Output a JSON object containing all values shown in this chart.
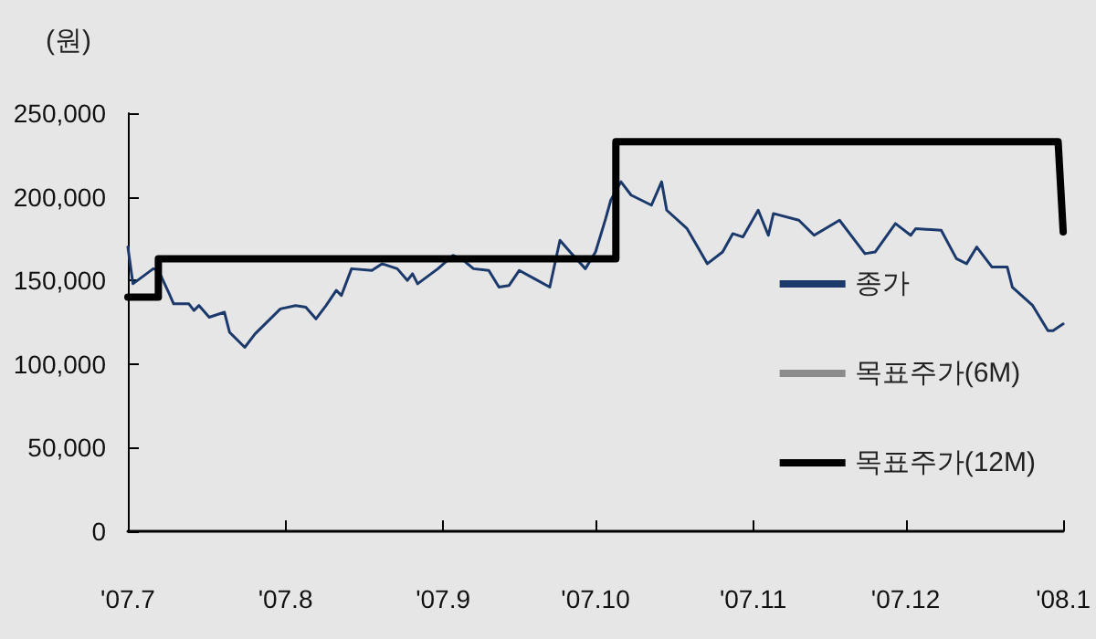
{
  "chart_data": {
    "type": "line",
    "ylabel": "(원)",
    "xlim": [
      "2007-07-01",
      "2008-01-01"
    ],
    "xticks": [
      {
        "value": "2007-07-01",
        "label": "'07.7"
      },
      {
        "value": "2007-08-01",
        "label": "'07.8"
      },
      {
        "value": "2007-09-01",
        "label": "'07.9"
      },
      {
        "value": "2007-10-01",
        "label": "'07.10"
      },
      {
        "value": "2007-11-01",
        "label": "'07.11"
      },
      {
        "value": "2007-12-01",
        "label": "'07.12"
      },
      {
        "value": "2008-01-01",
        "label": "'08.1"
      }
    ],
    "ylim": [
      0,
      250000
    ],
    "yticks": [
      {
        "value": 0,
        "label": "0"
      },
      {
        "value": 50000,
        "label": "50,000"
      },
      {
        "value": 100000,
        "label": "100,000"
      },
      {
        "value": 150000,
        "label": "150,000"
      },
      {
        "value": 200000,
        "label": "200,000"
      },
      {
        "value": 250000,
        "label": "250,000"
      }
    ],
    "grid": false,
    "legend": "right",
    "marker": "none",
    "line_style": "solid",
    "series": [
      {
        "name": "종가",
        "color": "#1b3a6b",
        "x": [
          "2007-07-01",
          "2007-07-02",
          "2007-07-06",
          "2007-07-07",
          "2007-07-09",
          "2007-07-10",
          "2007-07-13",
          "2007-07-14",
          "2007-07-15",
          "2007-07-17",
          "2007-07-20",
          "2007-07-21",
          "2007-07-24",
          "2007-07-26",
          "2007-07-29",
          "2007-07-31",
          "2007-08-03",
          "2007-08-05",
          "2007-08-07",
          "2007-08-09",
          "2007-08-11",
          "2007-08-12",
          "2007-08-14",
          "2007-08-18",
          "2007-08-20",
          "2007-08-23",
          "2007-08-25",
          "2007-08-26",
          "2007-08-27",
          "2007-08-31",
          "2007-09-03",
          "2007-09-05",
          "2007-09-07",
          "2007-09-10",
          "2007-09-12",
          "2007-09-14",
          "2007-09-16",
          "2007-09-19",
          "2007-09-22",
          "2007-09-24",
          "2007-09-26",
          "2007-09-29",
          "2007-10-01",
          "2007-10-03",
          "2007-10-04",
          "2007-10-06",
          "2007-10-08",
          "2007-10-12",
          "2007-10-14",
          "2007-10-15",
          "2007-10-19",
          "2007-10-23",
          "2007-10-26",
          "2007-10-28",
          "2007-10-30",
          "2007-11-02",
          "2007-11-04",
          "2007-11-05",
          "2007-11-10",
          "2007-11-13",
          "2007-11-18",
          "2007-11-23",
          "2007-11-25",
          "2007-11-29",
          "2007-12-02",
          "2007-12-03",
          "2007-12-08",
          "2007-12-11",
          "2007-12-13",
          "2007-12-15",
          "2007-12-18",
          "2007-12-21",
          "2007-12-22",
          "2007-12-26",
          "2007-12-29",
          "2007-12-30",
          "2008-01-01"
        ],
        "values": [
          170000,
          148000,
          157000,
          156000,
          143000,
          136000,
          136000,
          132000,
          135000,
          128000,
          131000,
          119000,
          110000,
          118000,
          127000,
          133000,
          135000,
          134000,
          127000,
          135000,
          144000,
          141000,
          157000,
          156000,
          160000,
          157000,
          150000,
          154000,
          148000,
          157000,
          165000,
          162000,
          157000,
          156000,
          146000,
          147000,
          156000,
          151000,
          146000,
          174000,
          167000,
          157000,
          167000,
          187000,
          198000,
          209000,
          201000,
          195000,
          209000,
          192000,
          181000,
          160000,
          167000,
          178000,
          176000,
          192000,
          177000,
          190000,
          186000,
          177000,
          186000,
          166000,
          167000,
          184000,
          177000,
          181000,
          180000,
          163000,
          160000,
          170000,
          158000,
          158000,
          146000,
          135000,
          120000,
          120000,
          124000
        ]
      },
      {
        "name": "목표주가(6M)",
        "color": "#8c8c8c"
      },
      {
        "name": "목표주가(12M)",
        "color": "#000000",
        "x": [
          "2007-07-01",
          "2007-07-07",
          "2007-07-07",
          "2007-10-05",
          "2007-10-05",
          "2007-12-31",
          "2008-01-01"
        ],
        "values": [
          140000,
          140000,
          163000,
          163000,
          233000,
          233000,
          179000
        ]
      }
    ]
  }
}
